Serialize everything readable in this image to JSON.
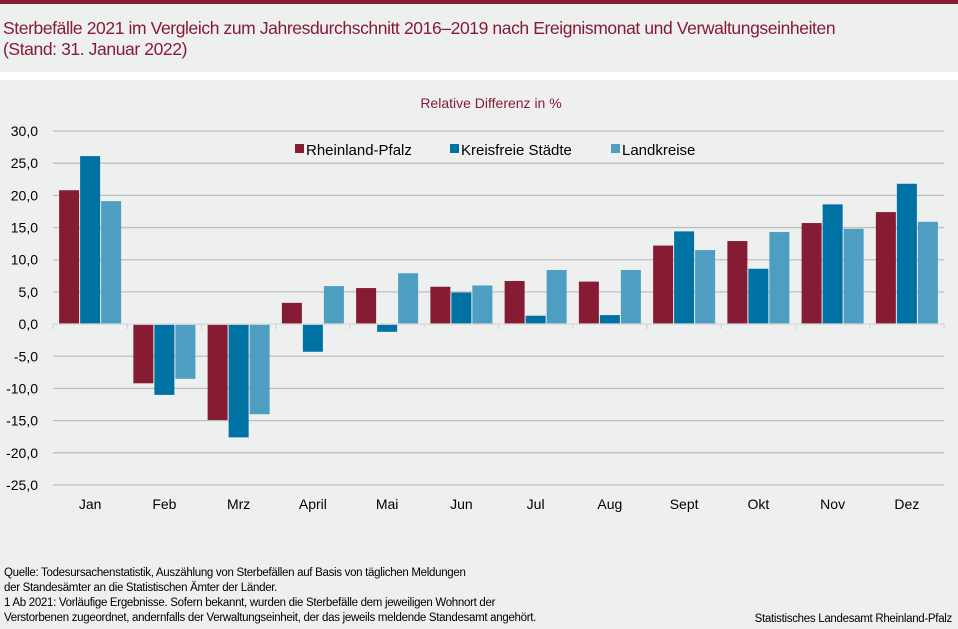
{
  "header": {
    "title_line1": "Sterbefälle 2021 im Vergleich zum Jahresdurchschnitt 2016–2019 nach Ereignismonat und Verwaltungseinheiten",
    "title_line2": "(Stand: 31. Januar 2022)"
  },
  "colors": {
    "accent": "#861c33",
    "panel": "#eeefef",
    "grid": "#bfbfbf"
  },
  "chart_data": {
    "type": "bar",
    "title": "Relative Differenz in %",
    "xlabel": "",
    "ylabel": "",
    "ylim": [
      -25,
      30
    ],
    "yticks": [
      30,
      25,
      20,
      15,
      10,
      5,
      0,
      -5,
      -10,
      -15,
      -20,
      -25
    ],
    "ytick_labels": [
      "30,0",
      "25,0",
      "20,0",
      "15,0",
      "10,0",
      "5,0",
      "0,0",
      "-5,0",
      "-10,0",
      "-15,0",
      "-20,0",
      "-25,0"
    ],
    "grid": true,
    "legend_position": "top",
    "categories": [
      "Jan",
      "Feb",
      "Mrz",
      "April",
      "Mai",
      "Jun",
      "Jul",
      "Aug",
      "Sept",
      "Okt",
      "Nov",
      "Dez"
    ],
    "series": [
      {
        "name": "Rheinland-Pfalz",
        "color": "#861c33",
        "values": [
          20.8,
          -9.2,
          -14.9,
          3.3,
          5.6,
          5.8,
          6.7,
          6.6,
          12.2,
          12.9,
          15.7,
          17.4
        ]
      },
      {
        "name": "Kreisfreie Städte",
        "color": "#0071a3",
        "values": [
          26.1,
          -11.0,
          -17.6,
          -4.3,
          -1.2,
          4.9,
          1.3,
          1.4,
          14.4,
          8.6,
          18.6,
          21.8
        ]
      },
      {
        "name": "Landkreise",
        "color": "#4d9ec0",
        "values": [
          19.1,
          -8.5,
          -14.0,
          5.9,
          7.9,
          6.0,
          8.4,
          8.4,
          11.5,
          14.3,
          14.8,
          15.9
        ]
      }
    ]
  },
  "footer": {
    "lines": [
      "Quelle: Todesursachenstatistik, Auszählung von Sterbefällen auf Basis von täglichen Meldungen",
      "der Standesämter an die Statistischen Ämter der Länder.",
      "1 Ab 2021: Vorläufige Ergebnisse. Sofern bekannt, wurden die Sterbefälle dem jeweiligen Wohnort der",
      "Verstorbenen zugeordnet, andernfalls der Verwaltungseinheit, der das jeweils meldende Standesamt angehört."
    ],
    "credit": "Statistisches Landesamt Rheinland-Pfalz"
  }
}
